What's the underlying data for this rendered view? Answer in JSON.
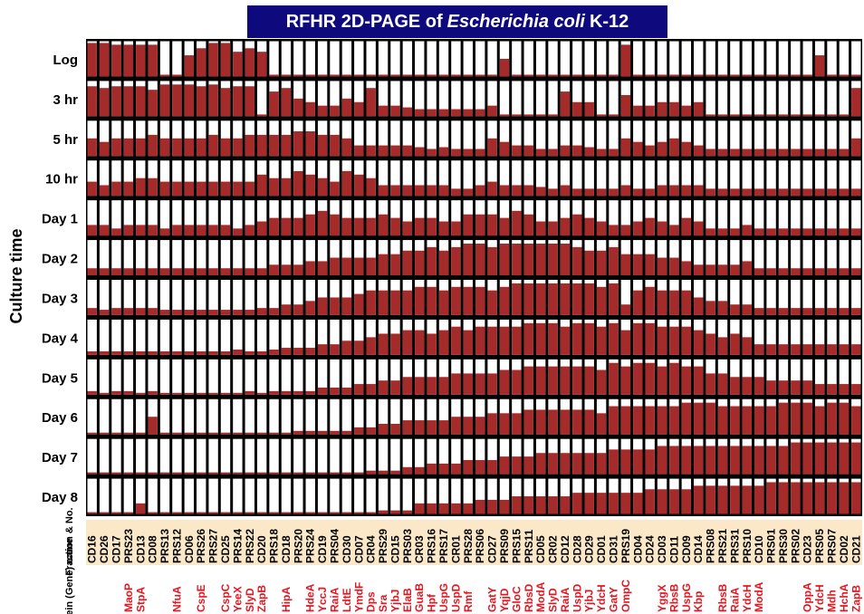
{
  "title": {
    "pre": "RFHR 2D-PAGE of",
    "italic": "Escherichia coli",
    "post": "K-12"
  },
  "colors": {
    "title_bg": "#0e0a7e",
    "bar": "#a52a2a",
    "label_red": "#e8141e",
    "label_bg": "#fbe8c8",
    "label_bg_alt": "#f6d8f0"
  },
  "chart_data": {
    "type": "bar",
    "ylabel": "Culture time",
    "rows": [
      "Log",
      "3 hr",
      "5 hr",
      "10 hr",
      "Day 1",
      "Day 2",
      "Day 3",
      "Day 4",
      "Day 5",
      "Day 6",
      "Day 7",
      "Day 8"
    ],
    "row_header_fraction": "Fraction & No.",
    "row_header_protein": "Protein (Gene) name",
    "categories": [
      "CD16",
      "CD26",
      "CD17",
      "PRS23",
      "CD13",
      "CD08",
      "PRS13",
      "PRS12",
      "CD06",
      "PRS26",
      "PRS27",
      "CD25",
      "PRS14",
      "PRS22",
      "CD20",
      "PRS18",
      "CD18",
      "PRS20",
      "PRS24",
      "CD19",
      "PRS04",
      "CD30",
      "CD07",
      "CR04",
      "PRS29",
      "CD15",
      "PRS03",
      "CR03",
      "PRS16",
      "PRS17",
      "CR01",
      "PRS28",
      "PRS06",
      "CD27",
      "PRS09",
      "PRS15",
      "PRS11",
      "CD05",
      "CR02",
      "CD12",
      "CD28",
      "CD29",
      "CD01",
      "CD31",
      "PRS19",
      "CD04",
      "CD24",
      "CD03",
      "CD11",
      "CD09",
      "CD14",
      "PRS08",
      "PRS21",
      "PRS31",
      "PRS10",
      "CD10",
      "PRS01",
      "PRS30",
      "PRS02",
      "CD23",
      "PRS05",
      "PRS07",
      "CD02",
      "CD21"
    ],
    "proteins": [
      "",
      "",
      "",
      "MaoP",
      "StpA",
      "",
      "",
      "NfuA",
      "",
      "CspE",
      "",
      "CspC",
      "YeeX",
      "SlyD",
      "ZapB",
      "",
      "HipA",
      "",
      "HdeA",
      "YccJ",
      "RaiA",
      "LdtE",
      "YmdF",
      "Dps",
      "Sra",
      "YjbJ",
      "ElaB",
      "GuaB",
      "Hpf",
      "UspG",
      "UspD",
      "Rmf",
      "",
      "GatY",
      "YqjD",
      "GloC",
      "RbsD",
      "ModA",
      "SlyD",
      "RaiA",
      "UspD",
      "YjbJ",
      "YdcH",
      "GatY",
      "OmpC",
      "",
      "",
      "YggX",
      "RbsB",
      "UspG",
      "Kbp",
      "",
      "RbsB",
      "RaiA",
      "YdcH",
      "ModA",
      "",
      "",
      "",
      "OppA",
      "YdcH",
      "Mdh",
      "HchA",
      "ZapB"
    ],
    "fill_fraction_note": "Each cell shows relative abundance (0-1) of the protein fraction at each culture time",
    "values": [
      [
        0.95,
        0.95,
        0.9,
        0.9,
        0.9,
        0.9,
        0.05,
        0.05,
        0.6,
        0.8,
        0.95,
        0.95,
        0.7,
        0.8,
        0.7,
        0.05,
        0.05,
        0.05,
        0.05,
        0.05,
        0.05,
        0.05,
        0.05,
        0.05,
        0.05,
        0.05,
        0.05,
        0.05,
        0.05,
        0.05,
        0.05,
        0.05,
        0.05,
        0.05,
        0.5,
        0.05,
        0.05,
        0.05,
        0.05,
        0.05,
        0.05,
        0.05,
        0.05,
        0.05,
        0.9,
        0.05,
        0.05,
        0.05,
        0.05,
        0.05,
        0.05,
        0.05,
        0.05,
        0.05,
        0.05,
        0.05,
        0.05,
        0.05,
        0.05,
        0.05,
        0.6,
        0.05,
        0.05,
        0.05
      ],
      [
        0.85,
        0.8,
        0.85,
        0.85,
        0.85,
        0.75,
        0.9,
        0.9,
        0.9,
        0.85,
        0.9,
        0.8,
        0.85,
        0.85,
        0.05,
        0.7,
        0.8,
        0.5,
        0.4,
        0.3,
        0.3,
        0.5,
        0.4,
        0.8,
        0.3,
        0.3,
        0.25,
        0.2,
        0.2,
        0.2,
        0.2,
        0.2,
        0.2,
        0.3,
        0.05,
        0.05,
        0.05,
        0.05,
        0.05,
        0.7,
        0.4,
        0.4,
        0.05,
        0.05,
        0.6,
        0.3,
        0.3,
        0.4,
        0.4,
        0.3,
        0.4,
        0.05,
        0.05,
        0.05,
        0.05,
        0.05,
        0.05,
        0.05,
        0.05,
        0.05,
        0.05,
        0.05,
        0.05,
        0.8
      ],
      [
        0.5,
        0.4,
        0.5,
        0.5,
        0.5,
        0.6,
        0.5,
        0.5,
        0.5,
        0.5,
        0.6,
        0.5,
        0.5,
        0.6,
        0.6,
        0.6,
        0.6,
        0.7,
        0.7,
        0.6,
        0.6,
        0.5,
        0.3,
        0.3,
        0.3,
        0.3,
        0.3,
        0.25,
        0.2,
        0.25,
        0.2,
        0.2,
        0.2,
        0.5,
        0.4,
        0.3,
        0.3,
        0.2,
        0.2,
        0.3,
        0.3,
        0.25,
        0.2,
        0.2,
        0.5,
        0.4,
        0.3,
        0.4,
        0.5,
        0.4,
        0.3,
        0.2,
        0.2,
        0.2,
        0.2,
        0.2,
        0.2,
        0.2,
        0.2,
        0.2,
        0.2,
        0.2,
        0.2,
        0.5
      ],
      [
        0.4,
        0.3,
        0.4,
        0.4,
        0.5,
        0.5,
        0.4,
        0.4,
        0.4,
        0.4,
        0.4,
        0.4,
        0.4,
        0.4,
        0.6,
        0.5,
        0.5,
        0.7,
        0.6,
        0.5,
        0.4,
        0.7,
        0.6,
        0.5,
        0.3,
        0.3,
        0.3,
        0.3,
        0.3,
        0.3,
        0.2,
        0.2,
        0.3,
        0.4,
        0.3,
        0.3,
        0.3,
        0.25,
        0.2,
        0.3,
        0.2,
        0.2,
        0.2,
        0.2,
        0.3,
        0.2,
        0.2,
        0.3,
        0.3,
        0.3,
        0.3,
        0.2,
        0.2,
        0.2,
        0.2,
        0.2,
        0.2,
        0.2,
        0.2,
        0.2,
        0.2,
        0.2,
        0.2,
        0.2
      ],
      [
        0.3,
        0.3,
        0.2,
        0.3,
        0.3,
        0.3,
        0.2,
        0.3,
        0.3,
        0.3,
        0.3,
        0.3,
        0.2,
        0.3,
        0.4,
        0.5,
        0.5,
        0.5,
        0.6,
        0.7,
        0.6,
        0.5,
        0.5,
        0.5,
        0.6,
        0.5,
        0.4,
        0.5,
        0.5,
        0.4,
        0.4,
        0.6,
        0.6,
        0.6,
        0.5,
        0.7,
        0.6,
        0.4,
        0.4,
        0.5,
        0.6,
        0.5,
        0.4,
        0.3,
        0.3,
        0.4,
        0.5,
        0.4,
        0.3,
        0.5,
        0.4,
        0.2,
        0.2,
        0.2,
        0.3,
        0.2,
        0.2,
        0.2,
        0.2,
        0.2,
        0.2,
        0.2,
        0.2,
        0.2
      ],
      [
        0.2,
        0.2,
        0.2,
        0.2,
        0.2,
        0.2,
        0.2,
        0.2,
        0.2,
        0.2,
        0.2,
        0.2,
        0.2,
        0.2,
        0.2,
        0.3,
        0.3,
        0.3,
        0.4,
        0.4,
        0.5,
        0.5,
        0.5,
        0.5,
        0.6,
        0.6,
        0.7,
        0.7,
        0.8,
        0.7,
        0.8,
        0.9,
        0.9,
        0.8,
        0.9,
        0.9,
        0.9,
        0.9,
        0.9,
        0.9,
        0.8,
        0.7,
        0.7,
        0.8,
        0.6,
        0.6,
        0.6,
        0.5,
        0.5,
        0.4,
        0.3,
        0.3,
        0.3,
        0.3,
        0.4,
        0.2,
        0.2,
        0.2,
        0.2,
        0.2,
        0.2,
        0.2,
        0.2,
        0.2
      ],
      [
        0.2,
        0.15,
        0.2,
        0.2,
        0.2,
        0.2,
        0.15,
        0.15,
        0.15,
        0.15,
        0.15,
        0.15,
        0.15,
        0.15,
        0.2,
        0.2,
        0.3,
        0.3,
        0.4,
        0.5,
        0.5,
        0.5,
        0.6,
        0.7,
        0.7,
        0.7,
        0.7,
        0.8,
        0.8,
        0.7,
        0.8,
        0.8,
        0.8,
        0.7,
        0.8,
        0.9,
        0.9,
        0.9,
        0.9,
        0.9,
        0.9,
        0.9,
        0.8,
        0.9,
        0.3,
        0.7,
        0.8,
        0.7,
        0.7,
        0.7,
        0.5,
        0.4,
        0.4,
        0.3,
        0.3,
        0.2,
        0.2,
        0.2,
        0.2,
        0.2,
        0.2,
        0.2,
        0.2,
        0.2
      ],
      [
        0.1,
        0.1,
        0.1,
        0.1,
        0.1,
        0.1,
        0.1,
        0.1,
        0.1,
        0.1,
        0.1,
        0.1,
        0.15,
        0.1,
        0.1,
        0.15,
        0.2,
        0.2,
        0.2,
        0.3,
        0.3,
        0.4,
        0.4,
        0.5,
        0.6,
        0.6,
        0.7,
        0.7,
        0.6,
        0.7,
        0.8,
        0.7,
        0.8,
        0.8,
        0.8,
        0.8,
        0.9,
        0.9,
        0.9,
        0.8,
        0.9,
        0.9,
        0.8,
        0.9,
        0.7,
        0.9,
        0.9,
        0.8,
        0.8,
        0.8,
        0.7,
        0.6,
        0.5,
        0.6,
        0.5,
        0.3,
        0.3,
        0.3,
        0.3,
        0.3,
        0.3,
        0.3,
        0.3,
        0.3
      ],
      [
        0.1,
        0.05,
        0.1,
        0.1,
        0.05,
        0.1,
        0.05,
        0.05,
        0.05,
        0.05,
        0.05,
        0.05,
        0.05,
        0.1,
        0.05,
        0.1,
        0.1,
        0.1,
        0.1,
        0.2,
        0.2,
        0.2,
        0.3,
        0.3,
        0.4,
        0.4,
        0.5,
        0.5,
        0.5,
        0.5,
        0.6,
        0.6,
        0.6,
        0.6,
        0.7,
        0.7,
        0.8,
        0.8,
        0.8,
        0.8,
        0.8,
        0.8,
        0.7,
        0.9,
        0.8,
        0.9,
        0.9,
        0.8,
        0.9,
        0.8,
        0.8,
        0.6,
        0.6,
        0.5,
        0.5,
        0.5,
        0.4,
        0.4,
        0.4,
        0.4,
        0.3,
        0.3,
        0.3,
        0.3
      ],
      [
        0.05,
        0.05,
        0.05,
        0.05,
        0.05,
        0.5,
        0.05,
        0.05,
        0.05,
        0.05,
        0.05,
        0.05,
        0.05,
        0.05,
        0.05,
        0.05,
        0.05,
        0.1,
        0.1,
        0.1,
        0.1,
        0.1,
        0.2,
        0.2,
        0.3,
        0.3,
        0.4,
        0.4,
        0.4,
        0.4,
        0.5,
        0.5,
        0.5,
        0.6,
        0.6,
        0.6,
        0.7,
        0.7,
        0.7,
        0.7,
        0.7,
        0.7,
        0.6,
        0.8,
        0.8,
        0.8,
        0.8,
        0.8,
        0.8,
        0.9,
        0.9,
        0.9,
        0.8,
        0.8,
        0.8,
        0.8,
        0.8,
        0.9,
        0.9,
        0.9,
        0.8,
        0.9,
        0.9,
        0.8
      ],
      [
        0.05,
        0.05,
        0.05,
        0.05,
        0.05,
        0.05,
        0.05,
        0.05,
        0.05,
        0.05,
        0.05,
        0.05,
        0.05,
        0.05,
        0.05,
        0.05,
        0.05,
        0.05,
        0.05,
        0.05,
        0.05,
        0.05,
        0.05,
        0.1,
        0.1,
        0.1,
        0.2,
        0.2,
        0.3,
        0.3,
        0.3,
        0.4,
        0.4,
        0.4,
        0.5,
        0.5,
        0.5,
        0.6,
        0.6,
        0.6,
        0.6,
        0.6,
        0.6,
        0.7,
        0.7,
        0.7,
        0.7,
        0.8,
        0.8,
        0.8,
        0.8,
        0.8,
        0.8,
        0.8,
        0.8,
        0.8,
        0.8,
        0.8,
        0.9,
        0.9,
        0.9,
        0.9,
        0.9,
        0.9
      ],
      [
        0.05,
        0.05,
        0.05,
        0.05,
        0.3,
        0.05,
        0.05,
        0.05,
        0.05,
        0.05,
        0.05,
        0.05,
        0.05,
        0.05,
        0.05,
        0.05,
        0.05,
        0.05,
        0.05,
        0.05,
        0.05,
        0.05,
        0.05,
        0.05,
        0.1,
        0.1,
        0.1,
        0.3,
        0.3,
        0.3,
        0.3,
        0.3,
        0.4,
        0.4,
        0.4,
        0.5,
        0.5,
        0.5,
        0.5,
        0.5,
        0.6,
        0.6,
        0.6,
        0.6,
        0.6,
        0.6,
        0.7,
        0.7,
        0.7,
        0.7,
        0.8,
        0.8,
        0.8,
        0.8,
        0.8,
        0.8,
        0.9,
        0.9,
        0.9,
        0.9,
        0.9,
        0.9,
        0.9,
        0.9
      ]
    ]
  }
}
